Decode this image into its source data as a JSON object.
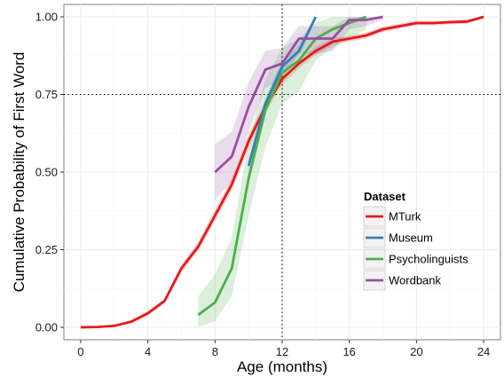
{
  "chart_data": {
    "type": "line",
    "xlabel": "Age (months)",
    "ylabel": "Cumulative Probability of First Word",
    "xlim": [
      -1,
      25
    ],
    "ylim": [
      -0.04,
      1.04
    ],
    "x_ticks": [
      0,
      4,
      8,
      12,
      16,
      20,
      24
    ],
    "y_ticks": [
      0.0,
      0.25,
      0.5,
      0.75,
      1.0
    ],
    "y_tick_labels": [
      "0.00",
      "0.25",
      "0.50",
      "0.75",
      "1.00"
    ],
    "grid": true,
    "reference_lines": [
      {
        "orientation": "vertical",
        "value": 12,
        "style": "dotted"
      },
      {
        "orientation": "horizontal",
        "value": 0.75,
        "style": "dotted"
      }
    ],
    "legend": {
      "title": "Dataset",
      "placement": "bottom-right",
      "entries": [
        "MTurk",
        "Museum",
        "Psycholinguists",
        "Wordbank"
      ]
    },
    "series": [
      {
        "name": "MTurk",
        "color": "#e41a1c",
        "x": [
          0,
          1,
          2,
          3,
          4,
          5,
          6,
          7,
          8,
          9,
          10,
          11,
          12,
          13,
          14,
          15,
          16,
          17,
          18,
          19,
          20,
          21,
          22,
          23,
          24
        ],
        "y": [
          0.0,
          0.001,
          0.005,
          0.018,
          0.045,
          0.085,
          0.19,
          0.26,
          0.36,
          0.46,
          0.6,
          0.71,
          0.8,
          0.85,
          0.89,
          0.92,
          0.93,
          0.94,
          0.96,
          0.97,
          0.98,
          0.98,
          0.983,
          0.985,
          1.0
        ],
        "band_lo": [
          0.0,
          0.0,
          0.002,
          0.012,
          0.038,
          0.078,
          0.178,
          0.245,
          0.342,
          0.44,
          0.578,
          0.69,
          0.782,
          0.835,
          0.877,
          0.908,
          0.92,
          0.93,
          0.951,
          0.962,
          0.972,
          0.973,
          0.976,
          0.978,
          0.995
        ],
        "band_hi": [
          0.002,
          0.003,
          0.008,
          0.024,
          0.052,
          0.092,
          0.202,
          0.275,
          0.378,
          0.48,
          0.622,
          0.73,
          0.818,
          0.865,
          0.903,
          0.932,
          0.94,
          0.95,
          0.969,
          0.978,
          0.988,
          0.987,
          0.99,
          0.992,
          1.0
        ]
      },
      {
        "name": "Museum",
        "color": "#377eb8",
        "x": [
          10,
          11,
          12,
          13,
          14
        ],
        "y": [
          0.52,
          0.72,
          0.84,
          0.89,
          1.0
        ],
        "band_lo": [
          0.5,
          0.7,
          0.82,
          0.87,
          0.99
        ],
        "band_hi": [
          0.54,
          0.74,
          0.86,
          0.91,
          1.0
        ]
      },
      {
        "name": "Psycholinguists",
        "color": "#4daf4a",
        "x": [
          7,
          8,
          9,
          10,
          11,
          12,
          13,
          14,
          15,
          16,
          17
        ],
        "y": [
          0.04,
          0.08,
          0.19,
          0.48,
          0.7,
          0.82,
          0.86,
          0.93,
          0.96,
          0.98,
          1.0
        ],
        "band_lo": [
          0.0,
          0.02,
          0.1,
          0.36,
          0.58,
          0.72,
          0.76,
          0.86,
          0.9,
          0.93,
          0.96
        ],
        "band_hi": [
          0.1,
          0.17,
          0.29,
          0.6,
          0.8,
          0.9,
          0.93,
          0.98,
          1.0,
          1.0,
          1.0
        ]
      },
      {
        "name": "Wordbank",
        "color": "#984ea3",
        "x": [
          8,
          9,
          10,
          11,
          12,
          13,
          14,
          15,
          16,
          17,
          18
        ],
        "y": [
          0.5,
          0.55,
          0.71,
          0.83,
          0.85,
          0.93,
          0.93,
          0.93,
          0.99,
          0.99,
          1.0
        ],
        "band_lo": [
          0.41,
          0.47,
          0.63,
          0.77,
          0.8,
          0.88,
          0.88,
          0.89,
          0.96,
          0.97,
          0.99
        ],
        "band_hi": [
          0.59,
          0.63,
          0.79,
          0.89,
          0.9,
          0.97,
          0.97,
          0.97,
          1.0,
          1.0,
          1.0
        ]
      }
    ]
  }
}
